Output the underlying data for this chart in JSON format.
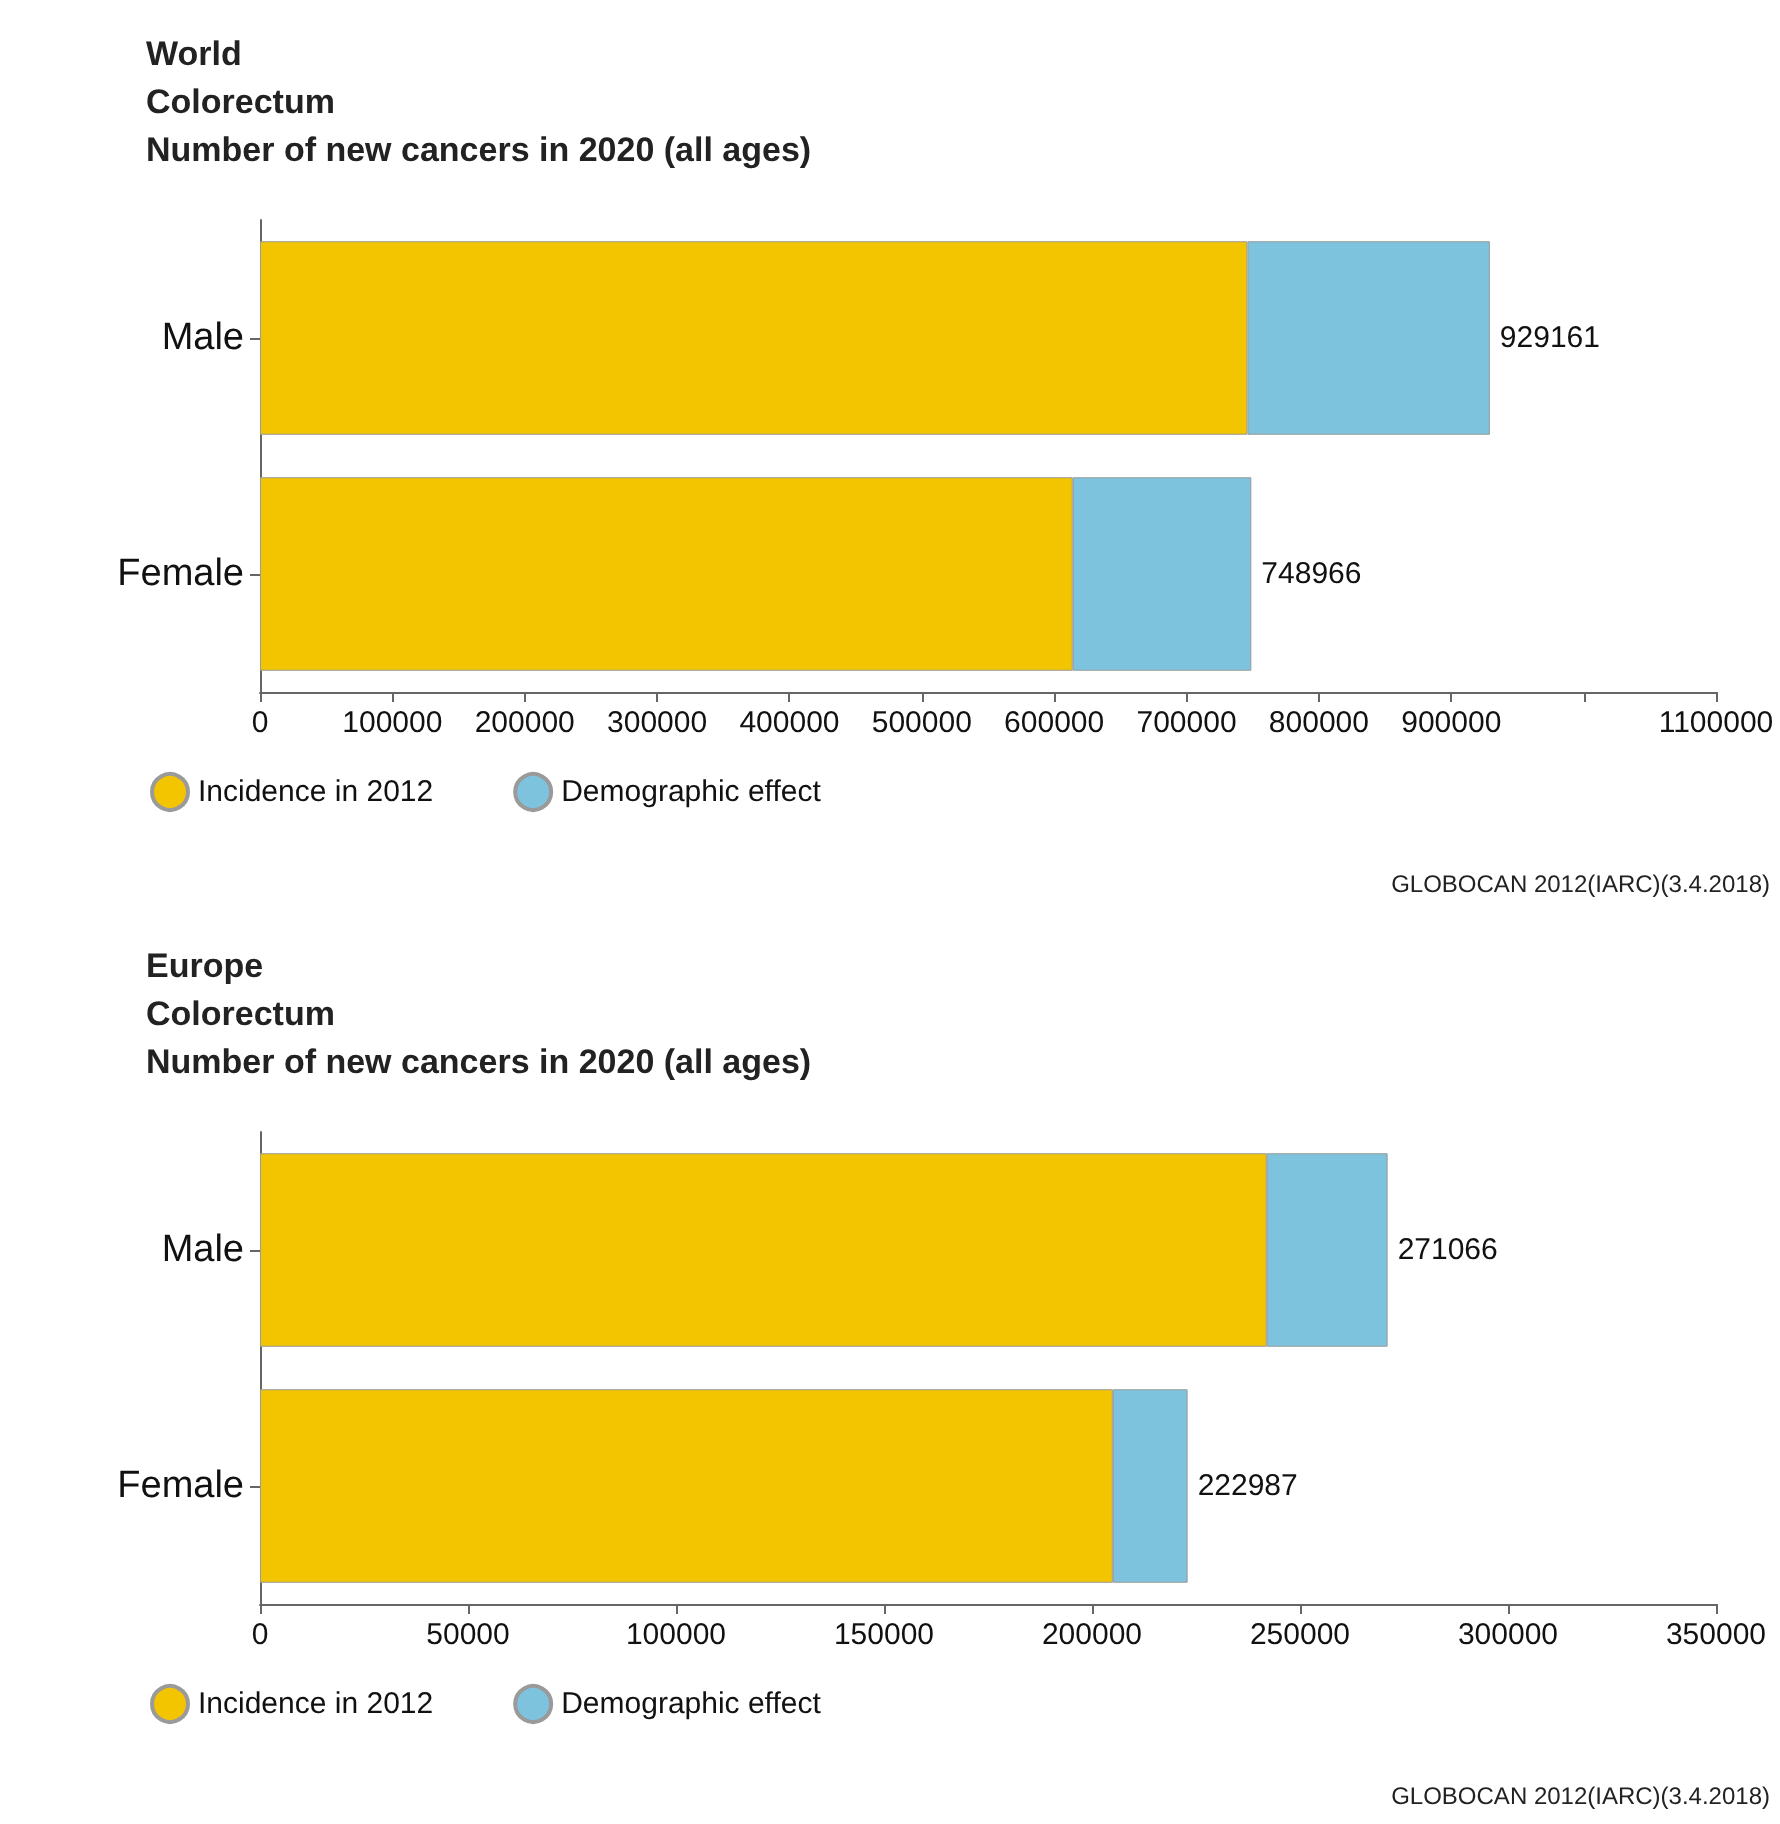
{
  "chart_data": [
    {
      "type": "bar",
      "orientation": "horizontal",
      "stacked": true,
      "title": "World\nColorectum\nNumber of new cancers in 2020 (all ages)",
      "categories": [
        "Male",
        "Female"
      ],
      "series": [
        {
          "name": "Incidence in 2012",
          "color": "#f2c500",
          "values": [
            746000,
            614000
          ]
        },
        {
          "name": "Demographic effect",
          "color": "#7ec3de",
          "values": [
            183161,
            134966
          ]
        }
      ],
      "totals": [
        "929161",
        "748966"
      ],
      "xlim": [
        0,
        1100000
      ],
      "xticks": [
        0,
        100000,
        200000,
        300000,
        400000,
        500000,
        600000,
        700000,
        800000,
        900000,
        {
          "value": 1000000,
          "label": null
        },
        1100000
      ],
      "grid": false,
      "legend": "bottom left",
      "annotations": [
        "GLOBOCAN 2012(IARC)(3.4.2018)"
      ]
    },
    {
      "type": "bar",
      "orientation": "horizontal",
      "stacked": true,
      "title": "Europe\nColorectum\nNumber of new cancers in 2020 (all ages)",
      "categories": [
        "Male",
        "Female"
      ],
      "series": [
        {
          "name": "Incidence in 2012",
          "color": "#f2c500",
          "values": [
            242000,
            205000
          ]
        },
        {
          "name": "Demographic effect",
          "color": "#7ec3de",
          "values": [
            29066,
            17987
          ]
        }
      ],
      "totals": [
        "271066",
        "222987"
      ],
      "xlim": [
        0,
        350000
      ],
      "xticks": [
        0,
        50000,
        100000,
        150000,
        200000,
        250000,
        300000,
        350000
      ],
      "grid": false,
      "legend": "bottom left",
      "annotations": [
        "GLOBOCAN 2012(IARC)(3.4.2018)"
      ]
    }
  ]
}
